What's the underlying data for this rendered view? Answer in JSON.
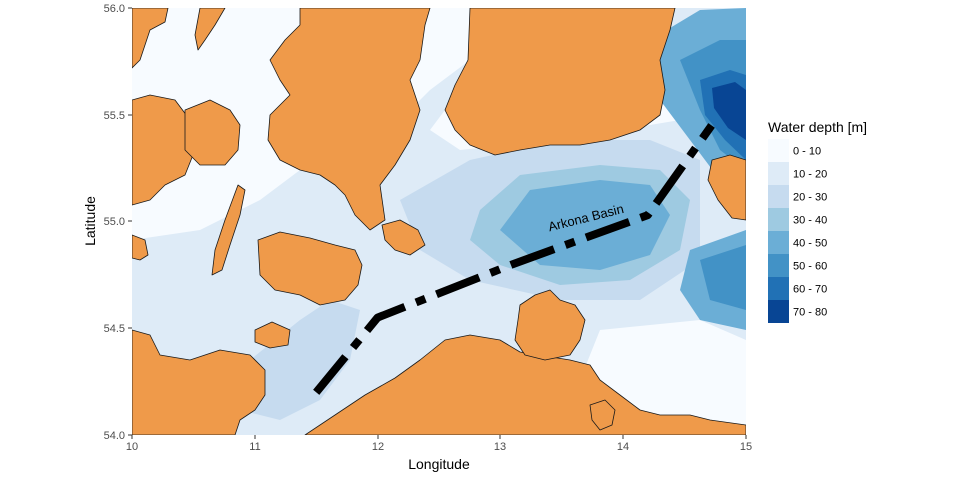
{
  "map": {
    "xlabel": "Longitude",
    "ylabel": "Latitude",
    "xlim": [
      10,
      15
    ],
    "ylim": [
      54.0,
      56.0
    ],
    "x_ticks": [
      "10",
      "11",
      "12",
      "13",
      "14",
      "15"
    ],
    "y_ticks": [
      "54.0",
      "54.5",
      "55.0",
      "55.5",
      "56.0"
    ],
    "annotation": "Arkona Basin",
    "land_color": "#ef9a4a",
    "transect": {
      "description_style": "dashed",
      "points": [
        [
          11.5,
          54.2
        ],
        [
          12.0,
          54.55
        ],
        [
          13.1,
          54.8
        ],
        [
          14.2,
          55.03
        ],
        [
          14.72,
          55.45
        ]
      ]
    }
  },
  "legend": {
    "title": "Water depth [m]",
    "entries": [
      {
        "label": "0 - 10",
        "color": "#f7fbff"
      },
      {
        "label": "10 - 20",
        "color": "#deebf7"
      },
      {
        "label": "20 - 30",
        "color": "#c6dbef"
      },
      {
        "label": "30 - 40",
        "color": "#9ecae1"
      },
      {
        "label": "40 - 50",
        "color": "#6baed6"
      },
      {
        "label": "50 - 60",
        "color": "#4292c6"
      },
      {
        "label": "60 - 70",
        "color": "#2171b5"
      },
      {
        "label": "70 - 80",
        "color": "#084594"
      }
    ]
  }
}
